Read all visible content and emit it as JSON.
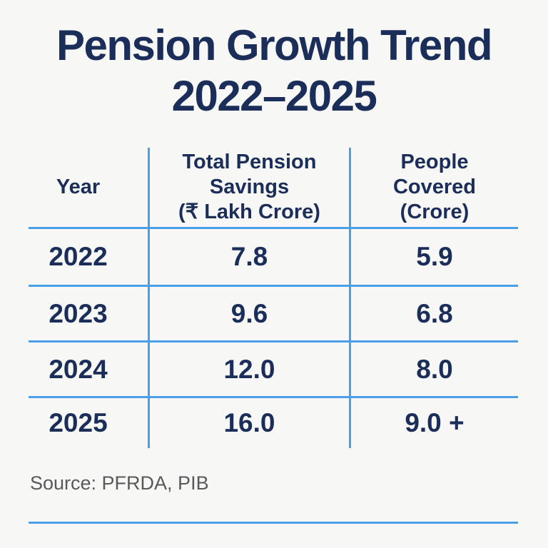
{
  "title": {
    "line1": "Pension Growth Trend",
    "line2": "2022–2025"
  },
  "table": {
    "headers": {
      "year": "Year",
      "savings": "Total Pension\nSavings\n(₹ Lakh Crore)",
      "covered": "People\nCovered\n(Crore)"
    },
    "rows": [
      {
        "year": "2022",
        "savings": "7.8",
        "covered": "5.9"
      },
      {
        "year": "2023",
        "savings": "9.6",
        "covered": "6.8"
      },
      {
        "year": "2024",
        "savings": "12.0",
        "covered": "8.0"
      },
      {
        "year": "2025",
        "savings": "16.0",
        "covered": "9.0 +"
      }
    ]
  },
  "source": "Source: PFRDA, PIB",
  "colors": {
    "navy_text": "#1b2d59",
    "line_blue": "#4aa0e8",
    "source_gray": "#58595b",
    "background": "#f7f7f5"
  },
  "chart_data": {
    "type": "table",
    "title": "Pension Growth Trend 2022–2025",
    "columns": [
      "Year",
      "Total Pension Savings (₹ Lakh Crore)",
      "People Covered (Crore)"
    ],
    "rows": [
      [
        "2022",
        7.8,
        5.9
      ],
      [
        "2023",
        9.6,
        6.8
      ],
      [
        "2024",
        12.0,
        8.0
      ],
      [
        "2025",
        16.0,
        "9.0+"
      ]
    ],
    "source": "Source: PFRDA, PIB",
    "grid": "light-blue row and column rules",
    "legend": "none"
  }
}
